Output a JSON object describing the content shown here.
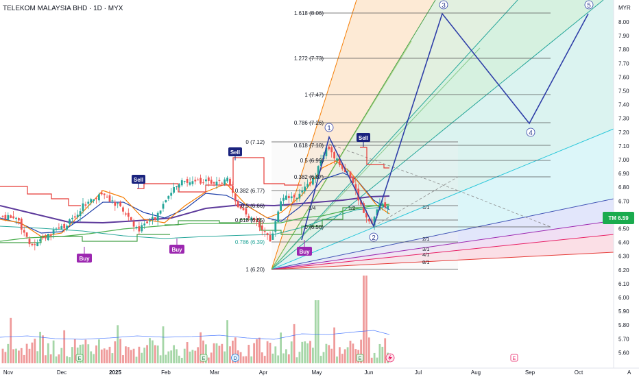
{
  "header": {
    "title": "TELEKOM MALAYSIA BHD · 1D · MYX"
  },
  "price_axis": {
    "currency": "MYR",
    "labels": [
      "8.00",
      "7.90",
      "7.80",
      "7.70",
      "7.60",
      "7.50",
      "7.40",
      "7.30",
      "7.20",
      "7.10",
      "7.00",
      "6.90",
      "6.80",
      "6.70",
      "6.60",
      "6.50",
      "6.40",
      "6.30",
      "6.20",
      "6.10",
      "6.00",
      "5.90",
      "5.80",
      "5.70",
      "5.60"
    ],
    "last_price_label": "TM 6.59",
    "last_price_color": "#1aab4e"
  },
  "time_axis": {
    "labels": [
      "Nov",
      "Dec",
      "2025",
      "Feb",
      "Mar",
      "Apr",
      "May",
      "Jun",
      "Jul",
      "Aug",
      "Sep",
      "Oct"
    ],
    "auto_scale_label": "A"
  },
  "fib_levels": [
    {
      "label": "1.618 (8.06)",
      "value": 8.06
    },
    {
      "label": "1.272 (7.73)",
      "value": 7.73
    },
    {
      "label": "1 (7.47)",
      "value": 7.47
    },
    {
      "label": "0.786 (7.26)",
      "value": 7.26
    },
    {
      "label": "0.618 (7.10)",
      "value": 7.1
    },
    {
      "label": "0.5 (6.99)",
      "value": 6.99
    },
    {
      "label": "0.382 (6.87)",
      "value": 6.87
    },
    {
      "label": "0 (6.50)",
      "value": 6.5
    }
  ],
  "fib_retracement": [
    {
      "label": "0 (7.12)",
      "value": 7.12
    },
    {
      "label": "0.382 (6.77)",
      "value": 6.77
    },
    {
      "label": "0.5 (6.66)",
      "value": 6.66
    },
    {
      "label": "0.618 (6.55)",
      "value": 6.55
    },
    {
      "label": "0.786 (6.39)",
      "value": 6.39
    },
    {
      "label": "1 (6.20)",
      "value": 6.2
    }
  ],
  "gann_fan_labels": [
    "1/1",
    "1/2",
    "1/4",
    "2/1",
    "3/1",
    "4/1",
    "8/1"
  ],
  "elliott_waves": [
    "1",
    "2",
    "3",
    "4",
    "5"
  ],
  "signals": [
    {
      "type": "Buy",
      "color": "#9c27b0"
    },
    {
      "type": "Buy",
      "color": "#9c27b0"
    },
    {
      "type": "Buy",
      "color": "#9c27b0"
    },
    {
      "type": "Sell",
      "color": "#1a237e"
    },
    {
      "type": "Sell",
      "color": "#1a237e"
    },
    {
      "type": "Sell",
      "color": "#1a237e"
    }
  ],
  "events": [
    "E",
    "E",
    "D",
    "E",
    "E"
  ],
  "chart_data": {
    "type": "candlestick",
    "symbol": "TELEKOM MALAYSIA BHD",
    "interval": "1D",
    "exchange": "MYX",
    "ylim": [
      5.55,
      8.1
    ],
    "last_price": 6.59,
    "x": [
      "Nov",
      "Dec",
      "2025",
      "Feb",
      "Mar",
      "Apr",
      "May",
      "Jun"
    ],
    "close": [
      6.55,
      6.5,
      6.6,
      6.75,
      6.78,
      6.55,
      7.0,
      6.59
    ]
  }
}
